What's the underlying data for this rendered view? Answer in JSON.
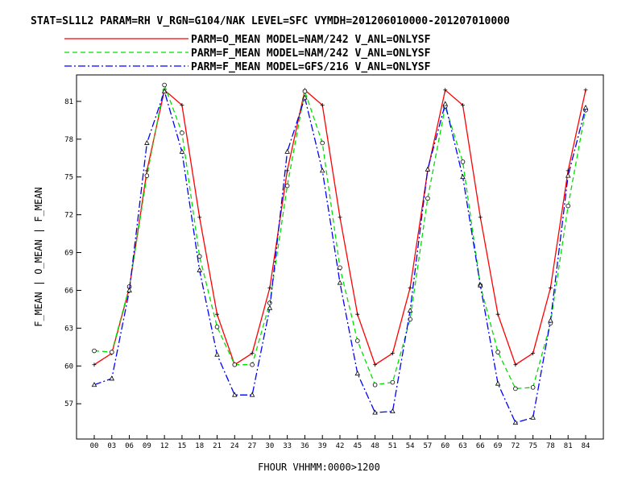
{
  "chart_data": {
    "type": "line",
    "title": "STAT=SL1L2 PARAM=RH V_RGN=G104/NAK LEVEL=SFC VYMDH=201206010000-201207010000",
    "xlabel": "FHOUR VHHMM:0000>1200",
    "ylabel": "F_MEAN | O_MEAN | F_MEAN",
    "x": [
      "00",
      "03",
      "06",
      "09",
      "12",
      "15",
      "18",
      "21",
      "24",
      "27",
      "30",
      "33",
      "36",
      "39",
      "42",
      "45",
      "48",
      "51",
      "54",
      "57",
      "60",
      "63",
      "66",
      "69",
      "72",
      "75",
      "78",
      "81",
      "84"
    ],
    "ylim": [
      54.2,
      83.1
    ],
    "yticks": [
      "57",
      "60",
      "63",
      "66",
      "69",
      "72",
      "75",
      "78",
      "81"
    ],
    "legend_position": "top",
    "series": [
      {
        "name": "PARM=O_MEAN MODEL=NAM/242 V_ANL=ONLYSF",
        "color": "#ff0000",
        "dash": "solid",
        "marker": "plus",
        "values": [
          60.1,
          61.0,
          66.2,
          75.5,
          81.9,
          80.7,
          71.8,
          64.1,
          60.1,
          61.0,
          66.2,
          75.5,
          81.9,
          80.7,
          71.8,
          64.1,
          60.1,
          61.0,
          66.2,
          75.5,
          81.9,
          80.7,
          71.8,
          64.1,
          60.1,
          61.0,
          66.2,
          75.5,
          81.9
        ]
      },
      {
        "name": "PARM=F_MEAN MODEL=NAM/242 V_ANL=ONLYSF",
        "color": "#00e000",
        "dash": "dashed",
        "marker": "diamond",
        "values": [
          61.2,
          61.1,
          66.3,
          75.1,
          82.3,
          78.5,
          68.7,
          63.1,
          60.1,
          60.1,
          65.0,
          74.3,
          81.8,
          77.7,
          67.8,
          62.0,
          58.5,
          58.7,
          63.7,
          73.3,
          80.6,
          76.2,
          66.4,
          61.1,
          58.2,
          58.3,
          63.4,
          72.7,
          80.3
        ]
      },
      {
        "name": "PARM=F_MEAN MODEL=GFS/216 V_ANL=ONLYSF",
        "color": "#0000ff",
        "dash": "dashdot",
        "marker": "triangle",
        "values": [
          58.5,
          59.0,
          66.0,
          77.7,
          81.8,
          77.0,
          67.6,
          60.9,
          57.7,
          57.7,
          64.6,
          77.0,
          81.3,
          75.5,
          66.6,
          59.4,
          56.3,
          56.4,
          64.4,
          75.6,
          80.8,
          75.0,
          66.4,
          58.6,
          55.5,
          55.9,
          63.6,
          75.1,
          80.5
        ]
      }
    ]
  }
}
